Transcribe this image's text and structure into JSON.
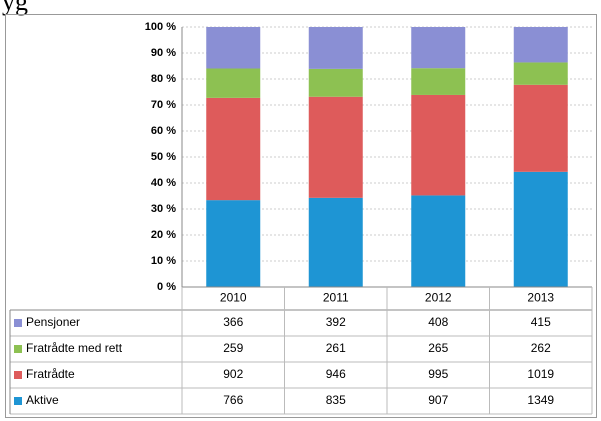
{
  "header_fragment": "yg",
  "chart_data": {
    "type": "stacked_bar_100",
    "categories": [
      "2010",
      "2011",
      "2012",
      "2013"
    ],
    "series": [
      {
        "name": "Pensjoner",
        "color": "#8a8fd4",
        "values": [
          366,
          392,
          408,
          415
        ]
      },
      {
        "name": "Fratrådte med rett",
        "color": "#8dc152",
        "values": [
          259,
          261,
          265,
          262
        ]
      },
      {
        "name": "Fratrådte",
        "color": "#de5b5b",
        "values": [
          902,
          946,
          995,
          1019
        ]
      },
      {
        "name": "Aktive",
        "color": "#1e95d4",
        "values": [
          766,
          835,
          907,
          1349
        ]
      }
    ],
    "ylim": [
      0,
      100
    ],
    "yticks": [
      {
        "value": 0,
        "label": "0 %"
      },
      {
        "value": 10,
        "label": "10 %"
      },
      {
        "value": 20,
        "label": "20 %"
      },
      {
        "value": 30,
        "label": "30 %"
      },
      {
        "value": 40,
        "label": "40 %"
      },
      {
        "value": 50,
        "label": "50 %"
      },
      {
        "value": 60,
        "label": "60 %"
      },
      {
        "value": 70,
        "label": "70 %"
      },
      {
        "value": 80,
        "label": "80 %"
      },
      {
        "value": 90,
        "label": "90 %"
      },
      {
        "value": 100,
        "label": "100 %"
      }
    ],
    "grid": true
  }
}
